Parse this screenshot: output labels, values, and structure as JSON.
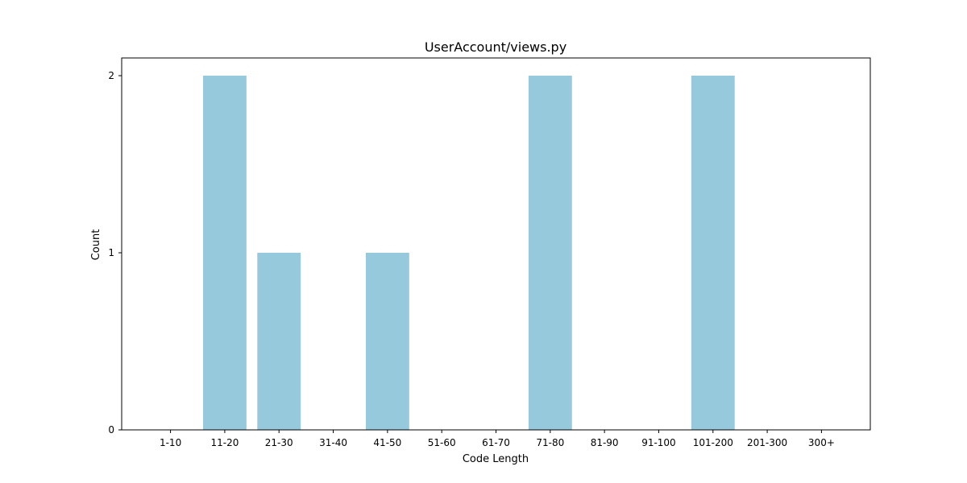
{
  "chart_data": {
    "type": "bar",
    "title": "UserAccount/views.py",
    "xlabel": "Code Length",
    "ylabel": "Count",
    "categories": [
      "1-10",
      "11-20",
      "21-30",
      "31-40",
      "41-50",
      "51-60",
      "61-70",
      "71-80",
      "81-90",
      "91-100",
      "101-200",
      "201-300",
      "300+"
    ],
    "values": [
      0,
      2,
      1,
      0,
      1,
      0,
      0,
      2,
      0,
      0,
      2,
      0,
      0
    ],
    "ylim": [
      0,
      2.1
    ],
    "yticks": [
      0,
      1,
      2
    ],
    "grid": false,
    "bar_color": "#96c9dc"
  }
}
